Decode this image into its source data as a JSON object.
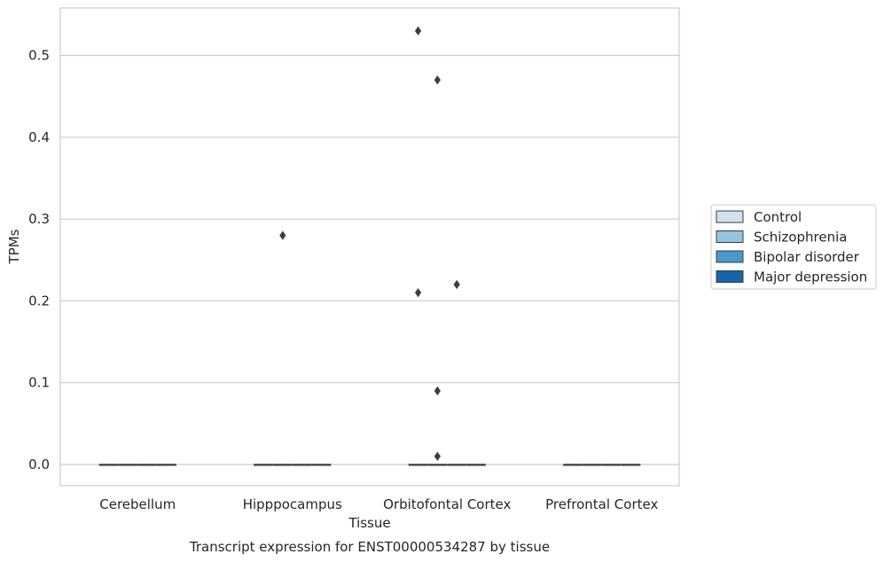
{
  "chart_data": {
    "type": "box",
    "caption": "Transcript expression for ENST00000534287 by tissue",
    "xlabel": "Tissue",
    "ylabel": "TPMs",
    "ylim": [
      -0.026,
      0.558
    ],
    "yticks": [
      0.0,
      0.1,
      0.2,
      0.3,
      0.4,
      0.5
    ],
    "ytick_labels": [
      "0.0",
      "0.1",
      "0.2",
      "0.3",
      "0.4",
      "0.5"
    ],
    "grid": "horizontal",
    "legend_position": "right",
    "categories": [
      "Cerebellum",
      "Hipppocampus",
      "Orbitofontal Cortex",
      "Prefrontal Cortex"
    ],
    "series": [
      {
        "name": "Control",
        "color": "#d0e1f2",
        "boxes": [
          {
            "category": "Cerebellum",
            "median": 0,
            "q1": 0,
            "q3": 0,
            "outliers": []
          },
          {
            "category": "Hipppocampus",
            "median": 0,
            "q1": 0,
            "q3": 0,
            "outliers": []
          },
          {
            "category": "Orbitofontal Cortex",
            "median": 0,
            "q1": 0,
            "q3": 0,
            "outliers": [
              0.53,
              0.21
            ]
          },
          {
            "category": "Prefrontal Cortex",
            "median": 0,
            "q1": 0,
            "q3": 0,
            "outliers": []
          }
        ]
      },
      {
        "name": "Schizophrenia",
        "color": "#94c4df",
        "boxes": [
          {
            "category": "Cerebellum",
            "median": 0,
            "q1": 0,
            "q3": 0,
            "outliers": []
          },
          {
            "category": "Hipppocampus",
            "median": 0,
            "q1": 0,
            "q3": 0,
            "outliers": [
              0.28
            ]
          },
          {
            "category": "Orbitofontal Cortex",
            "median": 0,
            "q1": 0,
            "q3": 0,
            "outliers": [
              0.47,
              0.09,
              0.01
            ]
          },
          {
            "category": "Prefrontal Cortex",
            "median": 0,
            "q1": 0,
            "q3": 0,
            "outliers": []
          }
        ]
      },
      {
        "name": "Bipolar disorder",
        "color": "#4a98c9",
        "boxes": [
          {
            "category": "Cerebellum",
            "median": 0,
            "q1": 0,
            "q3": 0,
            "outliers": []
          },
          {
            "category": "Hipppocampus",
            "median": 0,
            "q1": 0,
            "q3": 0,
            "outliers": []
          },
          {
            "category": "Orbitofontal Cortex",
            "median": 0,
            "q1": 0,
            "q3": 0,
            "outliers": [
              0.22
            ]
          },
          {
            "category": "Prefrontal Cortex",
            "median": 0,
            "q1": 0,
            "q3": 0,
            "outliers": []
          }
        ]
      },
      {
        "name": "Major depression",
        "color": "#1764ab",
        "boxes": [
          {
            "category": "Cerebellum",
            "median": 0,
            "q1": 0,
            "q3": 0,
            "outliers": []
          },
          {
            "category": "Hipppocampus",
            "median": 0,
            "q1": 0,
            "q3": 0,
            "outliers": []
          },
          {
            "category": "Orbitofontal Cortex",
            "median": 0,
            "q1": 0,
            "q3": 0,
            "outliers": []
          },
          {
            "category": "Prefrontal Cortex",
            "median": 0,
            "q1": 0,
            "q3": 0,
            "outliers": []
          }
        ]
      }
    ]
  }
}
